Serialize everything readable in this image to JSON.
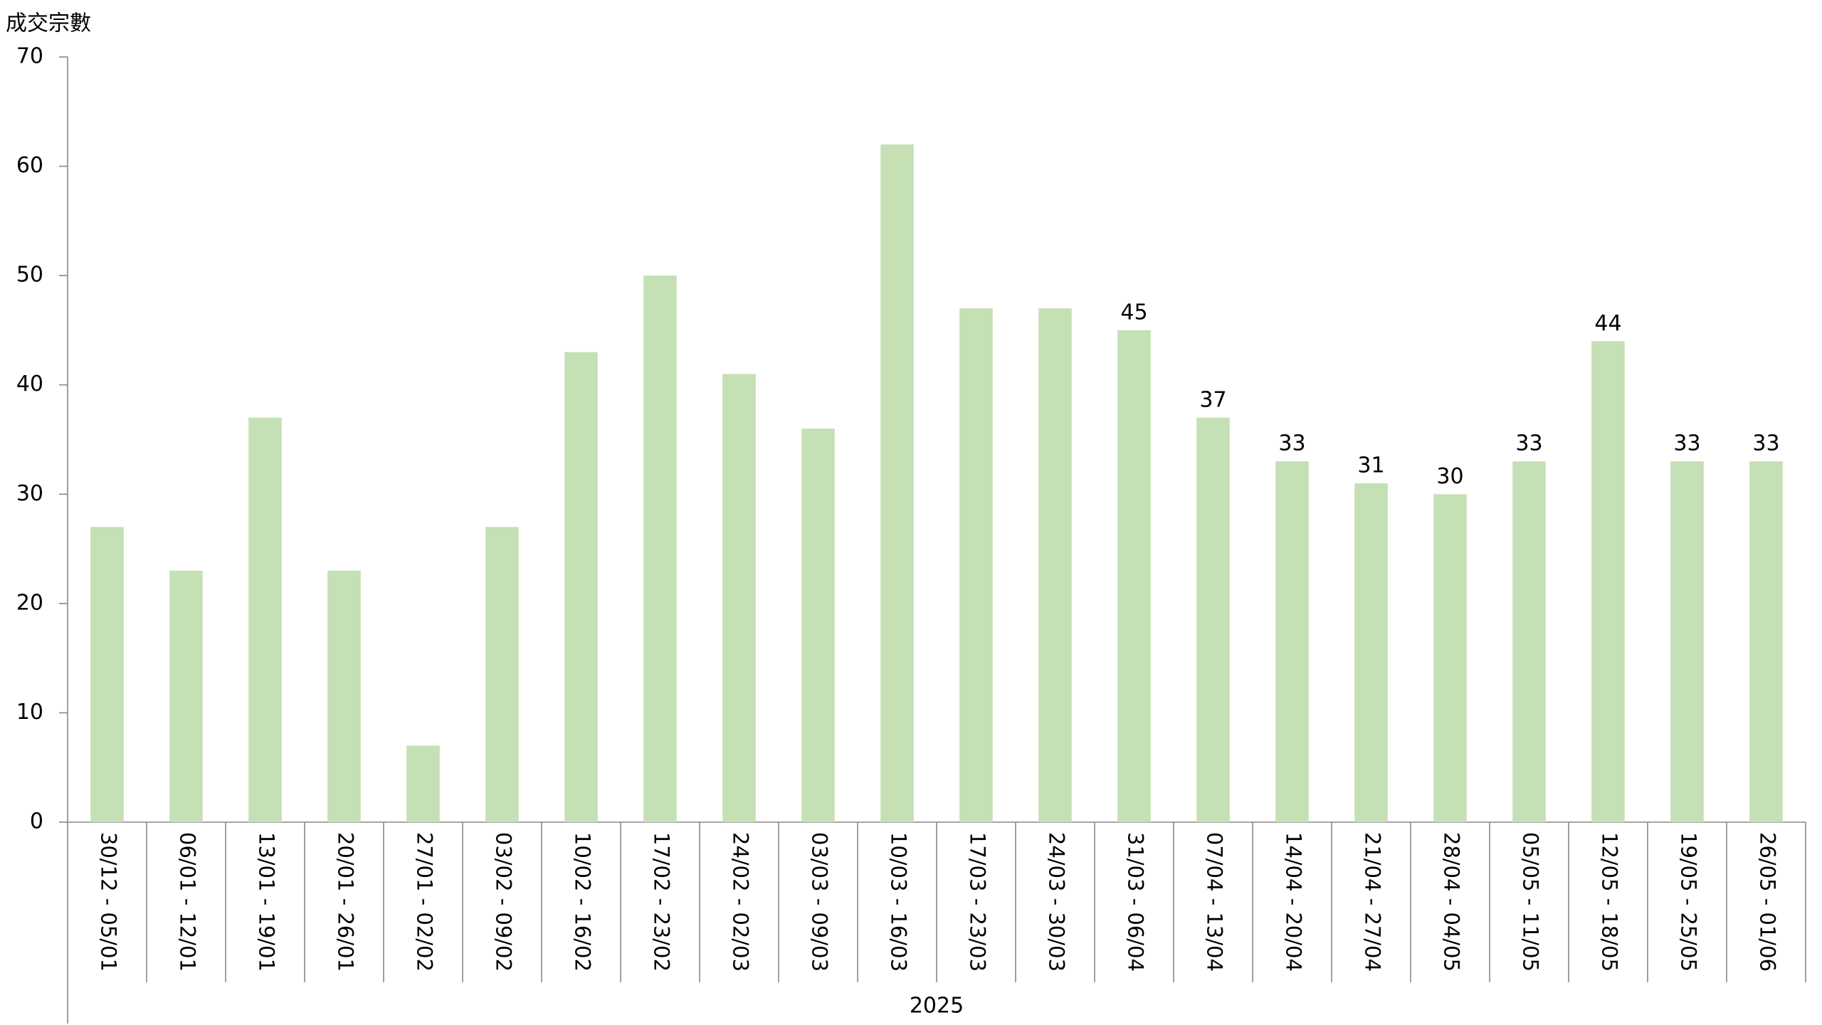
{
  "chart_data": {
    "type": "bar",
    "y_title": "成交宗數",
    "group_label": "2025",
    "categories": [
      "30/12 - 05/01",
      "06/01 - 12/01",
      "13/01 - 19/01",
      "20/01 - 26/01",
      "27/01 - 02/02",
      "03/02 - 09/02",
      "10/02 - 16/02",
      "17/02 - 23/02",
      "24/02 - 02/03",
      "03/03 - 09/03",
      "10/03 - 16/03",
      "17/03 - 23/03",
      "24/03 - 30/03",
      "31/03 - 06/04",
      "07/04 - 13/04",
      "14/04 - 20/04",
      "21/04 - 27/04",
      "28/04 - 04/05",
      "05/05 - 11/05",
      "12/05 - 18/05",
      "19/05 - 25/05",
      "26/05 - 01/06"
    ],
    "values": [
      27,
      23,
      37,
      23,
      7,
      27,
      43,
      50,
      41,
      36,
      62,
      47,
      47,
      45,
      37,
      33,
      31,
      30,
      33,
      44,
      33,
      33
    ],
    "value_labels": [
      null,
      null,
      null,
      null,
      null,
      null,
      null,
      null,
      null,
      null,
      null,
      null,
      null,
      "45",
      "37",
      "33",
      "31",
      "30",
      "33",
      "44",
      "33",
      "33"
    ],
    "color": "#c5e0b4",
    "ylim": [
      0,
      70
    ],
    "yticks": [
      0,
      10,
      20,
      30,
      40,
      50,
      60,
      70
    ],
    "grid": false
  }
}
